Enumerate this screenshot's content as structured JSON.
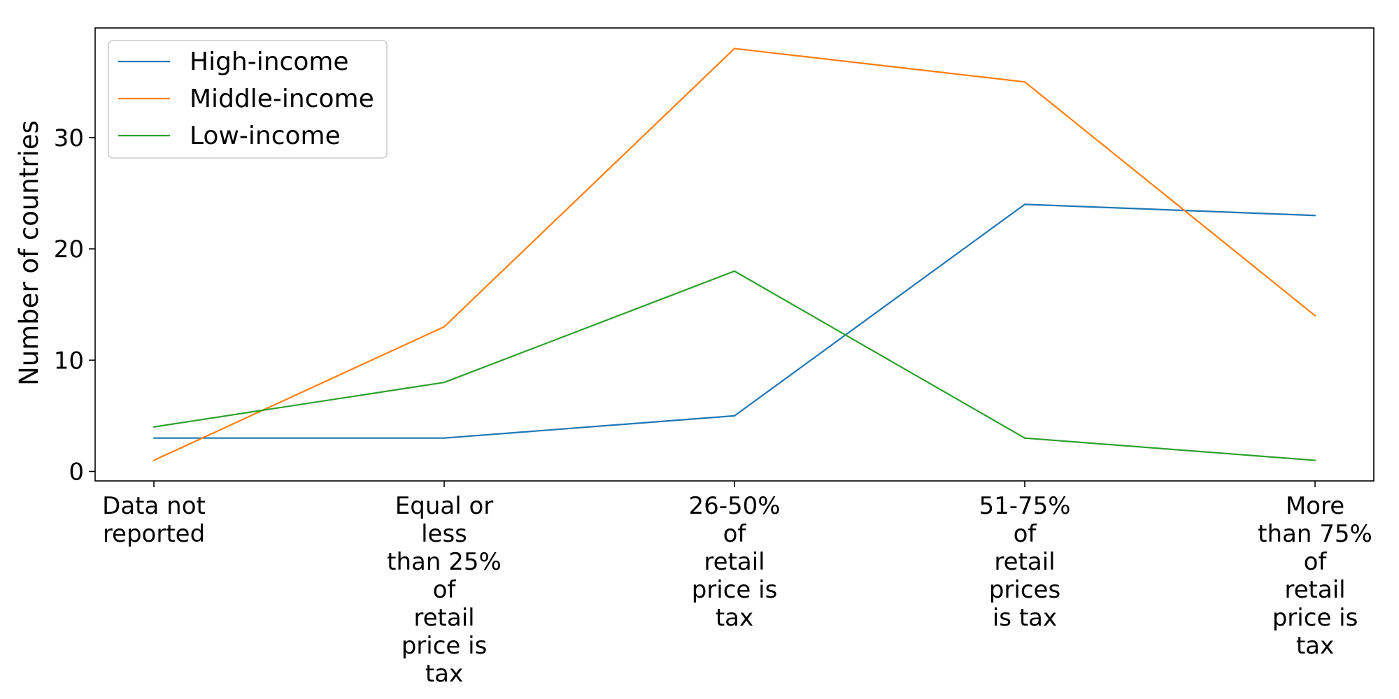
{
  "chart_data": {
    "type": "line",
    "categories": [
      [
        "Data not",
        "reported"
      ],
      [
        "Equal or",
        "less",
        "than 25%",
        "of",
        "retail",
        "price is",
        "tax"
      ],
      [
        "26-50%",
        "of",
        "retail",
        "price is",
        "tax"
      ],
      [
        "51-75%",
        "of",
        "retail",
        "prices",
        "is tax"
      ],
      [
        "More",
        "than 75%",
        "of",
        "retail",
        "price is",
        "tax"
      ]
    ],
    "series": [
      {
        "name": "High-income",
        "color": "#1f77b4",
        "values": [
          3,
          3,
          5,
          24,
          23
        ]
      },
      {
        "name": "Middle-income",
        "color": "#ff7f0e",
        "values": [
          1,
          13,
          38,
          35,
          14
        ]
      },
      {
        "name": "Low-income",
        "color": "#2ca02c",
        "values": [
          4,
          8,
          18,
          3,
          1
        ]
      }
    ],
    "title": "",
    "xlabel": "",
    "ylabel": "Number of countries",
    "ylim": [
      -0.85,
      39.85
    ],
    "yticks": [
      0,
      10,
      20,
      30
    ],
    "grid": false,
    "legend_position": "top-left"
  }
}
